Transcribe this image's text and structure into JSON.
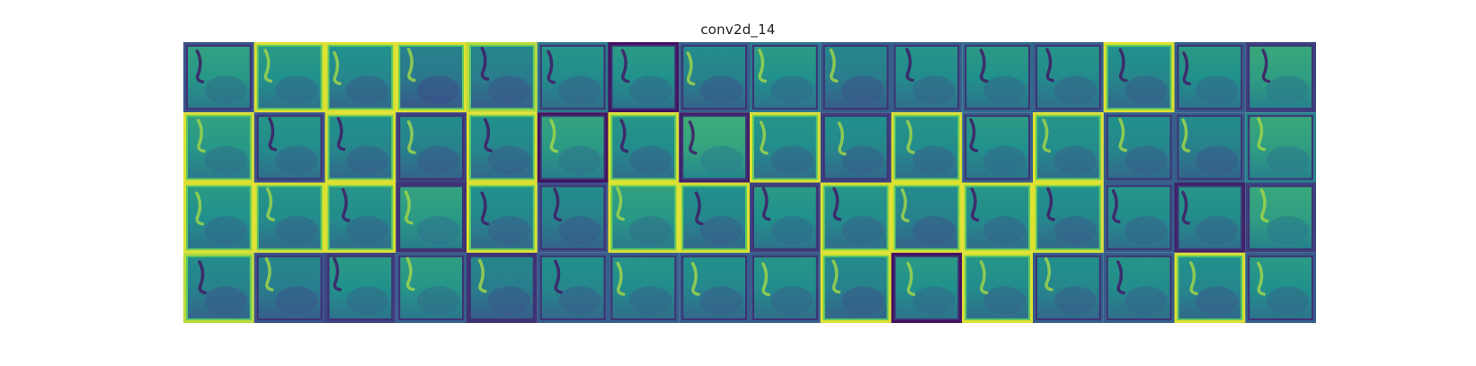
{
  "chart_data": {
    "type": "heatmap",
    "title": "conv2d_14",
    "layer_name": "conv2d_14",
    "grid": {
      "rows": 4,
      "cols": 16
    },
    "colormap": "viridis",
    "colormap_stops": [
      "#440154",
      "#3b528b",
      "#21918c",
      "#5ec962",
      "#fde725"
    ],
    "axes_visible": false,
    "tile_background": [
      0.55,
      0.52,
      0.48,
      0.42,
      0.44,
      0.5,
      0.52,
      0.46,
      0.52,
      0.44,
      0.5,
      0.52,
      0.5,
      0.48,
      0.52,
      0.58,
      0.55,
      0.5,
      0.48,
      0.46,
      0.48,
      0.56,
      0.5,
      0.6,
      0.5,
      0.48,
      0.5,
      0.52,
      0.5,
      0.48,
      0.46,
      0.58,
      0.52,
      0.5,
      0.5,
      0.56,
      0.48,
      0.46,
      0.55,
      0.48,
      0.52,
      0.5,
      0.46,
      0.5,
      0.48,
      0.5,
      0.5,
      0.58,
      0.46,
      0.44,
      0.52,
      0.54,
      0.44,
      0.48,
      0.5,
      0.48,
      0.5,
      0.46,
      0.52,
      0.5,
      0.48,
      0.5,
      0.48,
      0.52
    ],
    "tile_frame": [
      0.25,
      0.95,
      0.95,
      0.95,
      0.9,
      0.4,
      0.05,
      0.3,
      0.4,
      0.3,
      0.3,
      0.35,
      0.3,
      0.95,
      0.3,
      0.2,
      0.95,
      0.25,
      0.95,
      0.2,
      0.95,
      0.05,
      0.95,
      0.1,
      0.95,
      0.2,
      0.95,
      0.3,
      0.95,
      0.3,
      0.3,
      0.45,
      0.95,
      0.95,
      0.95,
      0.15,
      0.95,
      0.25,
      0.95,
      0.95,
      0.2,
      0.95,
      0.95,
      0.95,
      0.95,
      0.3,
      0.1,
      0.2,
      0.9,
      0.25,
      0.2,
      0.3,
      0.15,
      0.3,
      0.3,
      0.3,
      0.3,
      0.95,
      0.05,
      0.95,
      0.3,
      0.3,
      0.95,
      0.3
    ]
  }
}
